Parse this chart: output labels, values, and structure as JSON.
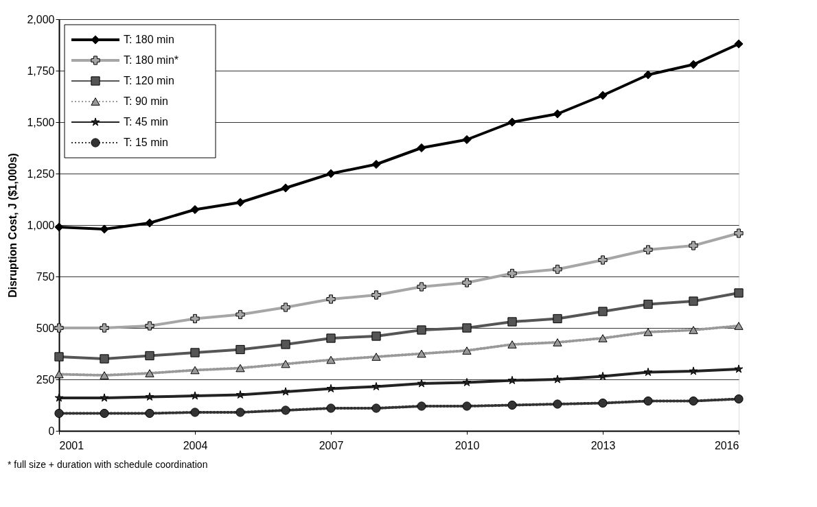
{
  "chart_data": {
    "type": "line",
    "ylabel": "Disruption Cost, J ($1,000s)",
    "annotations": [
      "* full size + duration with schedule coordination"
    ],
    "x": [
      2001,
      2002,
      2003,
      2004,
      2005,
      2006,
      2007,
      2008,
      2009,
      2010,
      2011,
      2012,
      2013,
      2014,
      2015,
      2016
    ],
    "series": [
      {
        "name": "T: 180 min",
        "color": "#000000",
        "marker": "diamond",
        "line_style": "solid",
        "values": [
          990,
          980,
          1010,
          1075,
          1110,
          1180,
          1250,
          1295,
          1375,
          1415,
          1500,
          1540,
          1630,
          1730,
          1780,
          1880
        ]
      },
      {
        "name": "T: 180 min*",
        "color": "#a6a6a6",
        "marker": "cross",
        "line_style": "solid",
        "values": [
          500,
          500,
          510,
          545,
          565,
          600,
          640,
          660,
          700,
          720,
          765,
          785,
          830,
          880,
          900,
          960
        ]
      },
      {
        "name": "T: 120 min",
        "color": "#555555",
        "marker": "square",
        "line_style": "solid",
        "values": [
          360,
          350,
          365,
          380,
          395,
          420,
          450,
          460,
          490,
          500,
          530,
          545,
          580,
          615,
          630,
          670
        ]
      },
      {
        "name": "T:  90 min",
        "color": "#999999",
        "marker": "triangle",
        "line_style": "dotted",
        "values": [
          275,
          270,
          280,
          295,
          305,
          325,
          345,
          360,
          375,
          390,
          420,
          430,
          450,
          480,
          490,
          510
        ]
      },
      {
        "name": "T:  45 min",
        "color": "#222222",
        "marker": "star",
        "line_style": "solid",
        "values": [
          160,
          160,
          165,
          170,
          175,
          190,
          205,
          215,
          230,
          235,
          245,
          250,
          265,
          285,
          290,
          300
        ]
      },
      {
        "name": "T:  15 min",
        "color": "#333333",
        "marker": "circle",
        "line_style": "dotted",
        "values": [
          85,
          85,
          85,
          90,
          90,
          100,
          110,
          110,
          120,
          120,
          125,
          130,
          135,
          145,
          145,
          155
        ]
      }
    ],
    "xlim": [
      2001,
      2016
    ],
    "xticks": [
      2001,
      2004,
      2007,
      2010,
      2013,
      2016
    ],
    "ylim": [
      0,
      2000
    ],
    "yticks": [
      0,
      250,
      500,
      750,
      {
        "value": 1000,
        "label": "1,000"
      },
      {
        "value": 1250,
        "label": "1,250"
      },
      {
        "value": 1500,
        "label": "1,500"
      },
      {
        "value": 1750,
        "label": "1,750"
      },
      {
        "value": 2000,
        "label": "2,000"
      }
    ],
    "grid": "y",
    "legend": "top left"
  }
}
